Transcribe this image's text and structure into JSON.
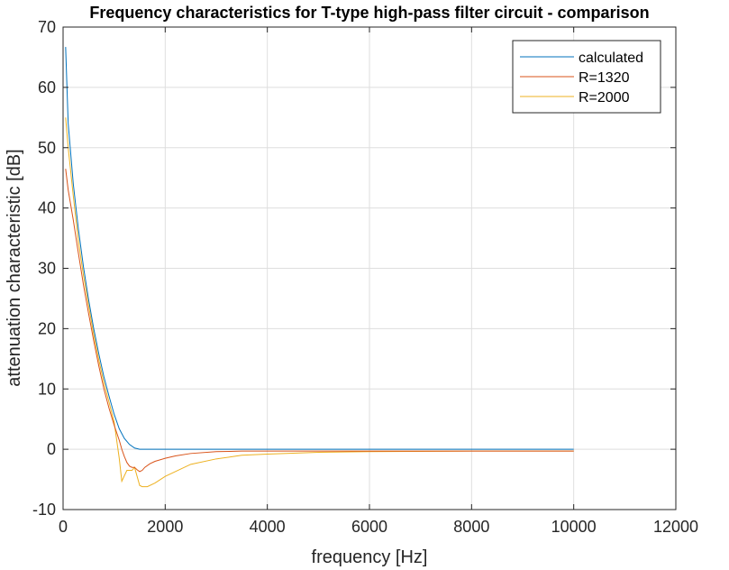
{
  "chart_data": {
    "type": "line",
    "title": "Frequency characteristics for T-type high-pass filter circuit - comparison",
    "xlabel": "frequency [Hz]",
    "ylabel": "attenuation characteristic [dB]",
    "xlim": [
      0,
      12000
    ],
    "ylim": [
      -10,
      70
    ],
    "xticks": [
      "0",
      "2000",
      "4000",
      "6000",
      "8000",
      "10000",
      "12000"
    ],
    "yticks": [
      "-10",
      "0",
      "10",
      "20",
      "30",
      "40",
      "50",
      "60",
      "70"
    ],
    "grid": true,
    "legend_position": "top-right",
    "series": [
      {
        "name": "calculated",
        "color": "#0072BD",
        "x": [
          50,
          100,
          200,
          300,
          400,
          500,
          600,
          700,
          800,
          900,
          1000,
          1100,
          1200,
          1300,
          1400,
          1500,
          1600,
          2000,
          4000,
          6000,
          8000,
          10000
        ],
        "y": [
          66.7,
          54,
          44,
          36.5,
          30.2,
          24.8,
          20,
          15.8,
          12,
          8.8,
          5.8,
          3.4,
          1.8,
          0.8,
          0.2,
          0,
          0,
          0,
          0,
          0,
          0,
          0
        ]
      },
      {
        "name": "R=1320",
        "color": "#D95319",
        "x": [
          50,
          100,
          200,
          300,
          400,
          500,
          600,
          700,
          800,
          900,
          1000,
          1100,
          1150,
          1200,
          1250,
          1300,
          1350,
          1400,
          1450,
          1500,
          1550,
          1600,
          1700,
          1800,
          2000,
          2200,
          2500,
          3000,
          3500,
          4000,
          5000,
          6000,
          8000,
          10000
        ],
        "y": [
          46.5,
          43,
          38,
          32.5,
          27.2,
          22.5,
          18,
          13.8,
          10,
          6.8,
          4,
          1.5,
          0,
          -1.2,
          -2.2,
          -2.8,
          -3.0,
          -3.0,
          -3.4,
          -3.7,
          -3.5,
          -3.0,
          -2.4,
          -2.0,
          -1.5,
          -1.1,
          -0.7,
          -0.4,
          -0.3,
          -0.3,
          -0.3,
          -0.3,
          -0.3,
          -0.3
        ]
      },
      {
        "name": "R=2000",
        "color": "#EDB120",
        "x": [
          50,
          100,
          200,
          300,
          400,
          500,
          600,
          700,
          800,
          900,
          1000,
          1100,
          1150,
          1250,
          1350,
          1400,
          1450,
          1500,
          1550,
          1650,
          1800,
          2000,
          2500,
          3000,
          3500,
          4000,
          5000,
          6000,
          8000,
          10000
        ],
        "y": [
          55,
          50,
          42,
          34.5,
          28.8,
          23.8,
          19,
          14.8,
          11,
          7.8,
          4.5,
          -1.5,
          -5.3,
          -3.5,
          -3.5,
          -3.0,
          -4.5,
          -6.0,
          -6.2,
          -6.2,
          -5.6,
          -4.5,
          -2.5,
          -1.6,
          -1.0,
          -0.8,
          -0.5,
          -0.4,
          -0.3,
          -0.3
        ]
      }
    ]
  }
}
